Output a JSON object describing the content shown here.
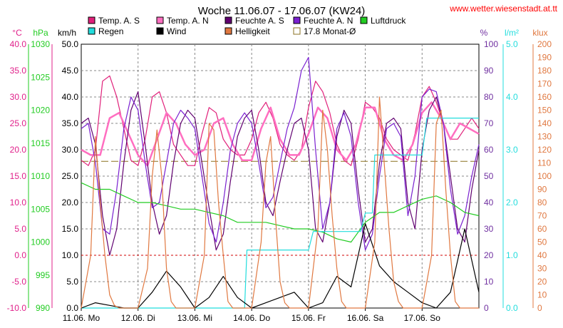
{
  "chart_data": {
    "type": "line",
    "title": "Woche 11.06.07 - 17.06.07 (KW24)",
    "source_url": "www.wetter.wiesenstadt.at.tt",
    "x_axis": {
      "labels": [
        "11.06.  Mo",
        "12.06.  Di",
        "13.06.  Mi",
        "14.06.  Do",
        "15.06.  Fr",
        "16.06.  Sa",
        "17.06.  So"
      ],
      "range_hours": [
        0,
        168
      ]
    },
    "axes": {
      "temp": {
        "unit": "°C",
        "ylim": [
          -10,
          40
        ],
        "ticks": [
          "40.0",
          "35.0",
          "30.0",
          "25.0",
          "20.0",
          "15.0",
          "10.0",
          "5.0",
          "0.0",
          "-5.0",
          "-10.0"
        ],
        "color": "#e0208a"
      },
      "pressure": {
        "unit": "hPa",
        "ylim": [
          990,
          1030
        ],
        "ticks": [
          "1030",
          "1025",
          "1020",
          "1015",
          "1010",
          "1005",
          "1000",
          "995",
          "990"
        ],
        "color": "#22cc22"
      },
      "wind": {
        "unit": "km/h",
        "ylim": [
          0,
          50
        ],
        "ticks": [
          "50.0",
          "45.0",
          "40.0",
          "35.0",
          "30.0",
          "25.0",
          "20.0",
          "15.0",
          "10.0",
          "5.0",
          "0.0"
        ],
        "color": "#000000"
      },
      "humidity": {
        "unit": "%",
        "ylim": [
          0,
          100
        ],
        "ticks": [
          "100",
          "90",
          "80",
          "70",
          "60",
          "50",
          "40",
          "30",
          "20",
          "10",
          "0"
        ],
        "color": "#7030a0"
      },
      "rain": {
        "unit": "l/m²",
        "ylim": [
          0,
          5
        ],
        "ticks": [
          "5.0",
          "4.0",
          "3.0",
          "2.0",
          "1.0",
          "0.0"
        ],
        "color": "#22dddd"
      },
      "light": {
        "unit": "klux",
        "ylim": [
          0,
          200
        ],
        "ticks": [
          "200",
          "190",
          "180",
          "170",
          "160",
          "150",
          "140",
          "130",
          "120",
          "110",
          "100",
          "90",
          "80",
          "70",
          "60",
          "50",
          "40",
          "30",
          "20",
          "10",
          "0"
        ],
        "color": "#e07840"
      }
    },
    "legend": [
      {
        "label": "Temp. A. S",
        "color": "#e0207a"
      },
      {
        "label": "Temp. A. N",
        "color": "#ff6ec0"
      },
      {
        "label": "Feuchte A. S",
        "color": "#600070"
      },
      {
        "label": "Feuchte A. N",
        "color": "#7a20d0"
      },
      {
        "label": "Luftdruck",
        "color": "#22cc22"
      },
      {
        "label": "Regen",
        "color": "#22dddd"
      },
      {
        "label": "Wind",
        "color": "#000000"
      },
      {
        "label": "Helligkeit",
        "color": "#e07840"
      },
      {
        "label": "17.8 Monat-Ø",
        "color": "#8a7020",
        "hollow": true
      }
    ],
    "reference_lines": {
      "monthly_avg_temp": 17.8,
      "zero_temp": 0
    },
    "series": [
      {
        "name": "Temp. A. S",
        "axis": "temp",
        "color": "#e0207a",
        "x": [
          0,
          3,
          6,
          9,
          12,
          15,
          18,
          21,
          24,
          27,
          30,
          33,
          36,
          39,
          42,
          45,
          48,
          51,
          54,
          57,
          60,
          63,
          66,
          69,
          72,
          75,
          78,
          81,
          84,
          87,
          90,
          93,
          96,
          99,
          102,
          105,
          108,
          111,
          114,
          117,
          120,
          123,
          126,
          129,
          132,
          135,
          138,
          141,
          144,
          147,
          150,
          153,
          156,
          159,
          162,
          165,
          168
        ],
        "y": [
          18,
          17,
          20,
          33,
          34,
          30,
          24,
          18,
          17,
          22,
          30,
          31,
          27,
          21,
          19,
          17,
          17,
          23,
          28,
          27,
          22,
          20,
          19,
          19,
          22,
          27,
          29,
          26,
          21,
          19,
          18,
          20,
          28,
          33,
          31,
          27,
          21,
          18,
          17,
          22,
          29,
          28,
          26,
          22,
          20,
          19,
          18,
          23,
          30,
          32,
          29,
          25,
          22,
          22,
          24,
          26,
          24
        ]
      },
      {
        "name": "Temp. A. N",
        "axis": "temp",
        "color": "#ff6ec0",
        "x": [
          0,
          4,
          8,
          12,
          16,
          20,
          24,
          28,
          32,
          36,
          40,
          44,
          48,
          52,
          56,
          60,
          64,
          68,
          72,
          76,
          80,
          84,
          88,
          92,
          96,
          100,
          104,
          108,
          112,
          116,
          120,
          124,
          128,
          132,
          136,
          140,
          144,
          148,
          152,
          156,
          160,
          164,
          168
        ],
        "y": [
          20,
          19,
          19,
          26,
          27,
          23,
          19,
          17,
          22,
          27,
          25,
          21,
          19,
          20,
          25,
          26,
          21,
          18,
          18,
          24,
          28,
          22,
          19,
          19,
          23,
          28,
          26,
          20,
          18,
          21,
          28,
          28,
          22,
          19,
          18,
          21,
          27,
          29,
          26,
          22,
          25,
          24,
          23
        ]
      },
      {
        "name": "Feuchte A. S",
        "axis": "humidity",
        "color": "#600070",
        "x": [
          0,
          3,
          6,
          9,
          12,
          15,
          18,
          21,
          24,
          27,
          30,
          33,
          36,
          39,
          42,
          45,
          48,
          51,
          54,
          57,
          60,
          63,
          66,
          69,
          72,
          75,
          78,
          81,
          84,
          87,
          90,
          93,
          96,
          99,
          102,
          105,
          108,
          111,
          114,
          117,
          120,
          123,
          126,
          129,
          132,
          135,
          138,
          141,
          144,
          147,
          150,
          153,
          156,
          159,
          162,
          165,
          168
        ],
        "y": [
          70,
          72,
          62,
          35,
          20,
          30,
          55,
          75,
          82,
          62,
          40,
          28,
          35,
          55,
          70,
          75,
          72,
          55,
          38,
          22,
          28,
          48,
          65,
          72,
          75,
          60,
          40,
          35,
          48,
          60,
          70,
          72,
          60,
          30,
          25,
          40,
          65,
          75,
          70,
          45,
          25,
          30,
          55,
          70,
          72,
          68,
          40,
          30,
          60,
          75,
          80,
          70,
          50,
          30,
          25,
          45,
          60
        ]
      },
      {
        "name": "Feuchte A. N",
        "axis": "humidity",
        "color": "#7a20d0",
        "x": [
          0,
          3,
          6,
          9,
          12,
          15,
          18,
          21,
          24,
          27,
          30,
          33,
          36,
          39,
          42,
          45,
          48,
          51,
          54,
          57,
          60,
          63,
          66,
          69,
          72,
          75,
          78,
          81,
          84,
          87,
          90,
          93,
          96,
          99,
          102,
          105,
          108,
          111,
          114,
          117,
          120,
          123,
          126,
          129,
          132,
          135,
          138,
          141,
          144,
          147,
          150,
          153,
          156,
          159,
          162,
          165,
          168
        ],
        "y": [
          68,
          70,
          55,
          30,
          28,
          45,
          68,
          80,
          75,
          55,
          38,
          40,
          55,
          70,
          75,
          72,
          68,
          50,
          32,
          25,
          40,
          60,
          70,
          74,
          70,
          55,
          38,
          42,
          55,
          68,
          76,
          90,
          95,
          60,
          30,
          40,
          68,
          74,
          65,
          40,
          22,
          28,
          50,
          68,
          70,
          65,
          35,
          50,
          80,
          83,
          82,
          70,
          45,
          28,
          35,
          50,
          62
        ]
      },
      {
        "name": "Luftdruck",
        "axis": "pressure",
        "color": "#22cc22",
        "x": [
          0,
          6,
          12,
          18,
          24,
          30,
          36,
          42,
          48,
          54,
          60,
          66,
          72,
          78,
          84,
          90,
          96,
          102,
          108,
          114,
          120,
          126,
          132,
          138,
          144,
          150,
          156,
          162,
          168
        ],
        "y": [
          1009,
          1008,
          1008,
          1007,
          1006,
          1006,
          1005.5,
          1005,
          1005,
          1004.5,
          1004,
          1003,
          1003,
          1003,
          1002.5,
          1002,
          1002,
          1001.5,
          1000.5,
          1000,
          1003,
          1004.5,
          1004.5,
          1005.5,
          1006.5,
          1007,
          1006,
          1004.5,
          1004
        ]
      },
      {
        "name": "Regen",
        "axis": "rain",
        "color": "#22dddd",
        "x": [
          0,
          69,
          70,
          96,
          98,
          118,
          120,
          123,
          124,
          144,
          146,
          168
        ],
        "y": [
          0,
          0,
          1.1,
          1.1,
          1.45,
          1.45,
          1.8,
          1.8,
          2.9,
          2.9,
          3.6,
          3.6
        ]
      },
      {
        "name": "Wind",
        "axis": "wind",
        "color": "#000000",
        "x": [
          0,
          6,
          12,
          18,
          24,
          30,
          36,
          42,
          48,
          54,
          60,
          66,
          72,
          78,
          84,
          90,
          96,
          102,
          108,
          114,
          120,
          126,
          132,
          138,
          144,
          150,
          156,
          162,
          168
        ],
        "y": [
          0,
          1,
          0.5,
          0,
          0,
          3,
          7,
          4,
          0,
          2,
          6,
          2,
          0,
          1,
          2,
          3,
          0,
          1,
          6,
          4,
          16,
          8,
          5,
          3,
          1,
          0,
          3,
          15,
          3
        ]
      },
      {
        "name": "Helligkeit",
        "axis": "light",
        "color": "#e07840",
        "x": [
          0,
          4,
          6,
          8,
          10,
          12,
          14,
          16,
          18,
          20,
          24,
          28,
          30,
          32,
          34,
          36,
          38,
          40,
          42,
          44,
          48,
          52,
          54,
          56,
          58,
          60,
          62,
          64,
          66,
          68,
          72,
          76,
          78,
          80,
          82,
          84,
          86,
          88,
          90,
          92,
          96,
          100,
          102,
          104,
          106,
          108,
          110,
          112,
          114,
          116,
          120,
          124,
          126,
          128,
          130,
          132,
          134,
          136,
          138,
          140,
          144,
          148,
          150,
          152,
          154,
          156,
          158,
          160,
          162,
          164,
          168
        ],
        "y": [
          0,
          40,
          130,
          80,
          40,
          10,
          2,
          0,
          0,
          0,
          0,
          30,
          100,
          135,
          100,
          30,
          5,
          0,
          0,
          0,
          0,
          40,
          140,
          135,
          80,
          40,
          5,
          0,
          0,
          0,
          0,
          50,
          110,
          130,
          70,
          20,
          4,
          0,
          0,
          0,
          0,
          60,
          150,
          120,
          70,
          30,
          5,
          0,
          0,
          0,
          0,
          50,
          160,
          110,
          60,
          20,
          5,
          0,
          0,
          0,
          0,
          40,
          140,
          150,
          90,
          40,
          5,
          0,
          0,
          0,
          0
        ]
      }
    ]
  }
}
